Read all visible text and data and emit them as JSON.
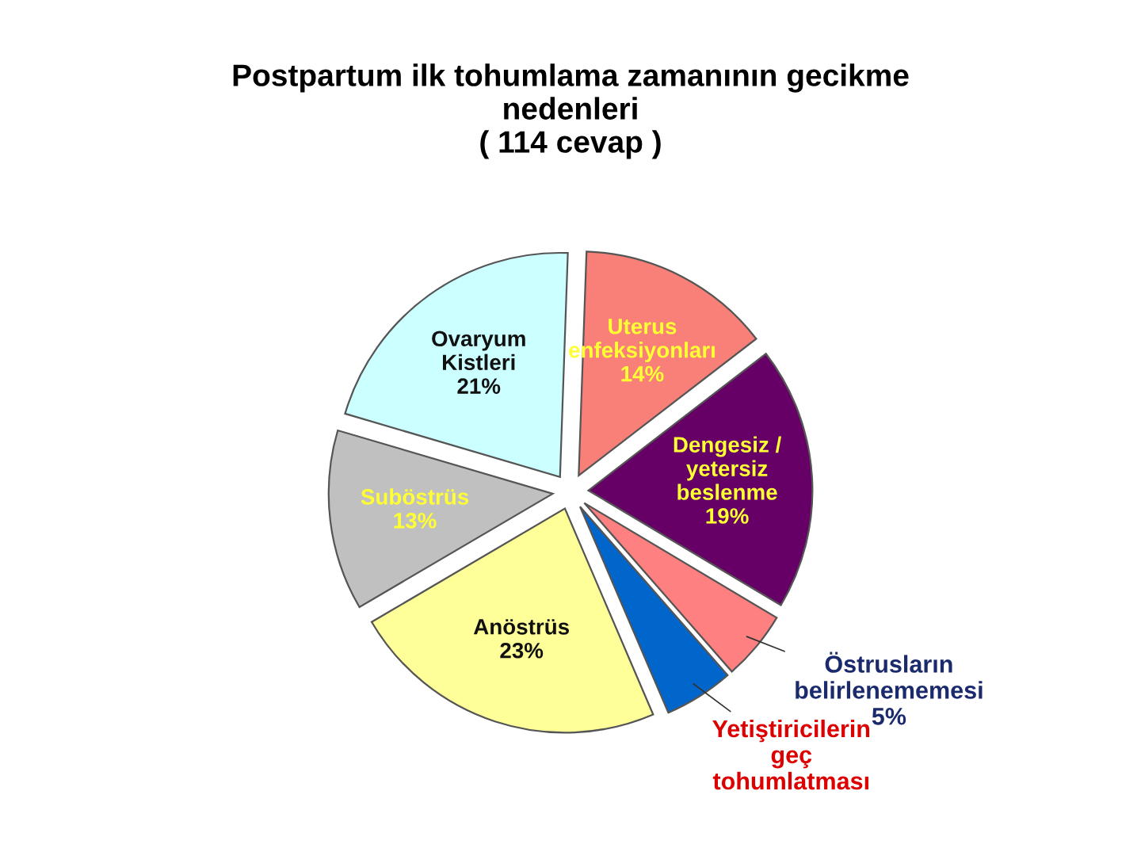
{
  "chart_data": {
    "type": "pie",
    "title": "Postpartum ilk tohumlama zamanının gecikme\nnedenleri\n( 114 cevap )",
    "categories": [
      "Uterus\nenfeksiyonları",
      "Dengesiz /\nyetersiz\nbeslenme",
      "Östrusların\nbelirlenememesi",
      "Yetiştiricilerin\ngeç\ntohumlatması",
      "Anöstrüs",
      "Suböstrüs",
      "Ovaryum\nKistleri"
    ],
    "values": [
      14,
      19,
      5,
      5,
      23,
      13,
      21
    ],
    "value_labels": [
      "14%",
      "19%",
      "5%",
      null,
      "23%",
      "13%",
      "21%"
    ],
    "colors": [
      "#f88078",
      "#660066",
      "#ff8080",
      "#0066cc",
      "#ffff99",
      "#c0c0c0",
      "#ccffff"
    ],
    "legend": false
  }
}
